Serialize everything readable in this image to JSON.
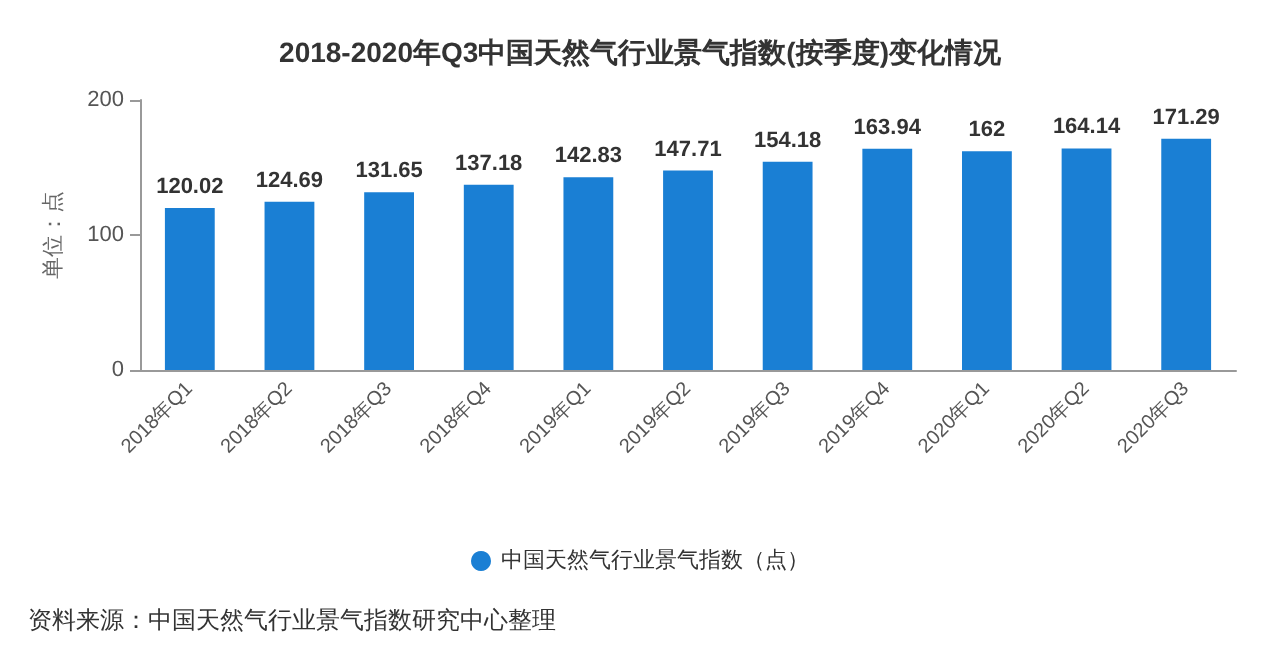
{
  "chart_data": {
    "type": "bar",
    "title": "2018-2020年Q3中国天然气行业景气指数(按季度)变化情况",
    "categories": [
      "2018年Q1",
      "2018年Q2",
      "2018年Q3",
      "2018年Q4",
      "2019年Q1",
      "2019年Q2",
      "2019年Q3",
      "2019年Q4",
      "2020年Q1",
      "2020年Q2",
      "2020年Q3"
    ],
    "series": [
      {
        "name": "中国天然气行业景气指数（点）",
        "color": "#1a7fd4",
        "values": [
          120.02,
          124.69,
          131.65,
          137.18,
          142.83,
          147.71,
          154.18,
          163.94,
          162,
          164.14,
          171.29
        ]
      }
    ],
    "ylabel": "单位：点",
    "ylim": [
      0,
      200
    ],
    "yticks": [
      0,
      100,
      200
    ],
    "grid": false,
    "legend": "bottom",
    "data_labels": true,
    "annotations": [
      "资料来源：中国天然气行业景气指数研究中心整理"
    ]
  }
}
